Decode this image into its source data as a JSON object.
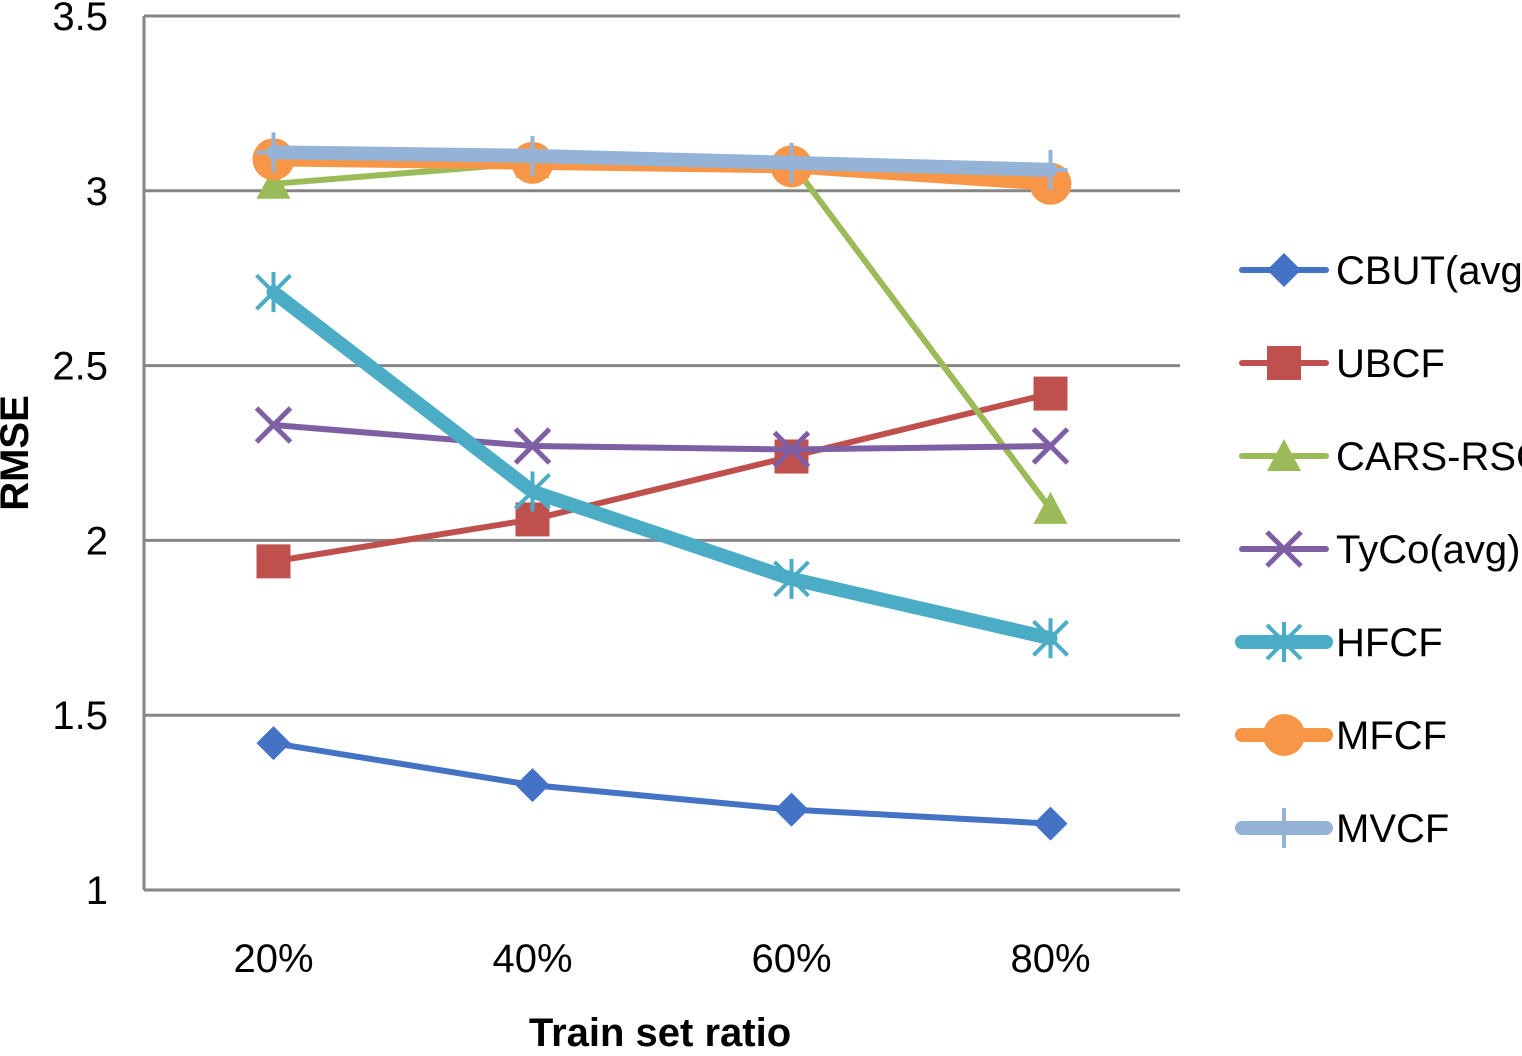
{
  "chart_data": {
    "type": "line",
    "title": "",
    "xlabel": "Train set ratio",
    "ylabel": "RMSE",
    "categories": [
      "20%",
      "40%",
      "60%",
      "80%"
    ],
    "ylim": [
      1,
      3.5
    ],
    "yticks": [
      "1",
      "1.5",
      "2",
      "2.5",
      "3",
      "3.5"
    ],
    "ytick_values": [
      1,
      1.5,
      2,
      2.5,
      3,
      3.5
    ],
    "grid": "horizontal",
    "legend_position": "right",
    "series": [
      {
        "name": "CBUT(avg)",
        "values": [
          1.42,
          1.3,
          1.23,
          1.19
        ],
        "color": "#4472C4",
        "marker": "diamond",
        "line_weight": "normal"
      },
      {
        "name": "UBCF",
        "values": [
          1.94,
          2.06,
          2.24,
          2.42
        ],
        "color": "#C0504D",
        "marker": "square",
        "line_weight": "normal"
      },
      {
        "name": "CARS-RSCF",
        "values": [
          3.02,
          3.08,
          3.08,
          2.09
        ],
        "color": "#9BBB59",
        "marker": "triangle",
        "line_weight": "normal"
      },
      {
        "name": "TyCo(avg)",
        "values": [
          2.33,
          2.27,
          2.26,
          2.27
        ],
        "color": "#7F5FA3",
        "marker": "x",
        "line_weight": "normal"
      },
      {
        "name": "HFCF",
        "values": [
          2.71,
          2.14,
          1.89,
          1.72
        ],
        "color": "#4BACC6",
        "marker": "asterisk",
        "line_weight": "thick"
      },
      {
        "name": "MFCF",
        "values": [
          3.09,
          3.08,
          3.07,
          3.02
        ],
        "color": "#F79646",
        "marker": "circle",
        "line_weight": "thick"
      },
      {
        "name": "MVCF",
        "values": [
          3.11,
          3.1,
          3.08,
          3.06
        ],
        "color": "#95B3D7",
        "marker": "plus",
        "line_weight": "thick"
      }
    ]
  }
}
